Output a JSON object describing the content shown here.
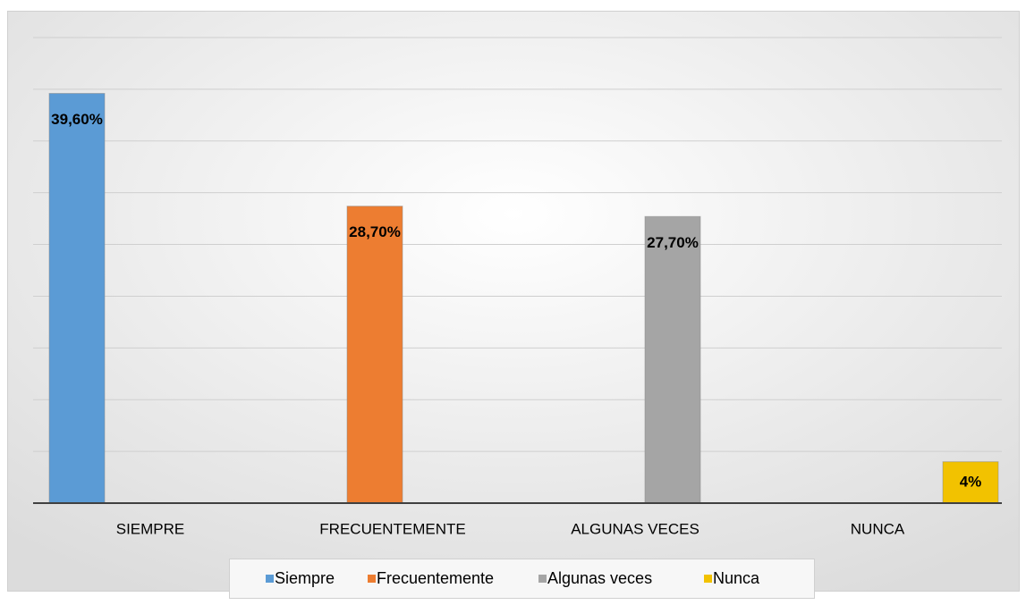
{
  "chart_data": {
    "type": "bar",
    "categories": [
      "SIEMPRE",
      "FRECUENTEMENTE",
      "ALGUNAS VECES",
      "NUNCA"
    ],
    "series": [
      {
        "name": "Siempre",
        "color": "#5b9bd5",
        "values": [
          39.6,
          null,
          null,
          null
        ],
        "value_labels": [
          "39,60%",
          null,
          null,
          null
        ]
      },
      {
        "name": "Frecuentemente",
        "color": "#ed7d31",
        "values": [
          null,
          28.7,
          null,
          null
        ],
        "value_labels": [
          null,
          "28,70%",
          null,
          null
        ]
      },
      {
        "name": "Algunas veces",
        "color": "#a5a5a5",
        "values": [
          null,
          null,
          27.7,
          null
        ],
        "value_labels": [
          null,
          null,
          "27,70%",
          null
        ]
      },
      {
        "name": "Nunca",
        "color": "#f2c200",
        "values": [
          null,
          null,
          null,
          4
        ],
        "value_labels": [
          null,
          null,
          null,
          "4%"
        ]
      }
    ],
    "ylim": [
      0,
      45
    ],
    "yticks": [
      0,
      5,
      10,
      15,
      20,
      25,
      30,
      35,
      40,
      45
    ],
    "grid": true,
    "legend": "bottom"
  }
}
